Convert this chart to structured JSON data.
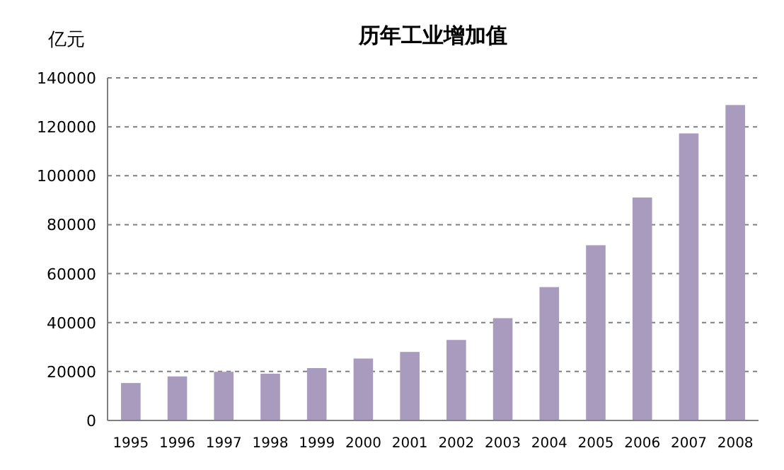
{
  "chart_data": {
    "type": "bar",
    "title": "历年工业增加值",
    "ylabel": "亿元",
    "categories": [
      "1995",
      "1996",
      "1997",
      "1998",
      "1999",
      "2000",
      "2001",
      "2002",
      "2003",
      "2004",
      "2005",
      "2006",
      "2007",
      "2008"
    ],
    "values": [
      15300,
      18000,
      19900,
      19100,
      21400,
      25300,
      28000,
      32900,
      41800,
      54500,
      71600,
      91100,
      117300,
      128900
    ],
    "color": "#a89bbe",
    "ylim": [
      0,
      140000
    ],
    "yticks": [
      0,
      20000,
      40000,
      60000,
      80000,
      100000,
      120000,
      140000
    ],
    "grid": "y"
  }
}
